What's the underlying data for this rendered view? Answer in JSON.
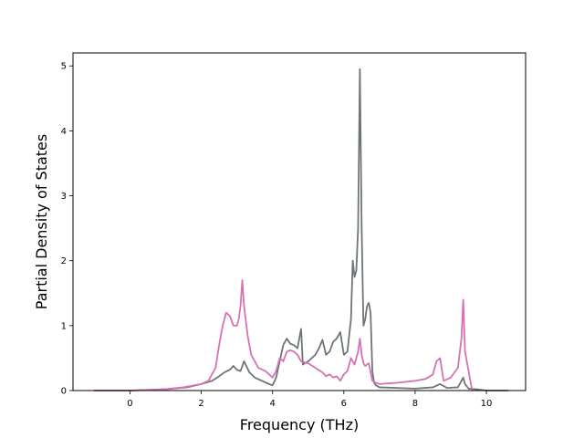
{
  "chart_data": {
    "type": "line",
    "xlabel": "Frequency (THz)",
    "ylabel": "Partial Density of States",
    "xlim": [
      -1.6,
      11.1
    ],
    "ylim": [
      0,
      5.2
    ],
    "xticks": [
      "0",
      "2",
      "4",
      "6",
      "8",
      "10"
    ],
    "yticks": [
      "0",
      "1",
      "2",
      "3",
      "4",
      "5"
    ],
    "grid": false,
    "legend": "none",
    "series": [
      {
        "color": "#6e7578",
        "x": [
          -1.0,
          0.0,
          1.0,
          1.6,
          2.0,
          2.3,
          2.5,
          2.65,
          2.8,
          2.9,
          3.0,
          3.1,
          3.2,
          3.35,
          3.5,
          3.7,
          3.9,
          4.0,
          4.1,
          4.2,
          4.3,
          4.4,
          4.5,
          4.6,
          4.7,
          4.8,
          4.85,
          4.9,
          5.0,
          5.1,
          5.2,
          5.3,
          5.4,
          5.5,
          5.6,
          5.7,
          5.8,
          5.9,
          6.0,
          6.1,
          6.2,
          6.25,
          6.3,
          6.35,
          6.4,
          6.45,
          6.5,
          6.55,
          6.6,
          6.65,
          6.7,
          6.75,
          6.8,
          6.85,
          6.9,
          7.0,
          7.5,
          8.0,
          8.5,
          8.7,
          8.9,
          9.2,
          9.35,
          9.4,
          9.5,
          9.7,
          10.0,
          10.6
        ],
        "y": [
          0.0,
          0.0,
          0.02,
          0.05,
          0.1,
          0.15,
          0.22,
          0.28,
          0.32,
          0.38,
          0.32,
          0.3,
          0.45,
          0.28,
          0.2,
          0.15,
          0.1,
          0.08,
          0.2,
          0.45,
          0.7,
          0.8,
          0.72,
          0.7,
          0.65,
          0.95,
          0.4,
          0.42,
          0.45,
          0.5,
          0.55,
          0.65,
          0.78,
          0.55,
          0.6,
          0.75,
          0.8,
          0.9,
          0.55,
          0.6,
          1.1,
          2.0,
          1.75,
          1.85,
          2.5,
          4.95,
          2.5,
          1.0,
          1.1,
          1.3,
          1.35,
          1.2,
          0.3,
          0.12,
          0.08,
          0.05,
          0.04,
          0.03,
          0.05,
          0.1,
          0.04,
          0.05,
          0.2,
          0.1,
          0.03,
          0.02,
          0.0,
          0.0
        ]
      },
      {
        "color": "#d672b4",
        "x": [
          -1.0,
          0.0,
          1.0,
          1.5,
          2.0,
          2.2,
          2.4,
          2.5,
          2.6,
          2.7,
          2.8,
          2.9,
          3.0,
          3.05,
          3.1,
          3.15,
          3.2,
          3.3,
          3.4,
          3.5,
          3.6,
          3.8,
          4.0,
          4.1,
          4.2,
          4.3,
          4.4,
          4.5,
          4.6,
          4.7,
          4.8,
          5.0,
          5.2,
          5.4,
          5.5,
          5.6,
          5.7,
          5.8,
          5.9,
          6.0,
          6.1,
          6.2,
          6.3,
          6.4,
          6.45,
          6.5,
          6.55,
          6.6,
          6.7,
          6.8,
          6.9,
          7.0,
          7.5,
          8.0,
          8.3,
          8.5,
          8.6,
          8.7,
          8.8,
          9.0,
          9.2,
          9.3,
          9.35,
          9.4,
          9.5,
          9.6
        ],
        "y": [
          0.0,
          0.0,
          0.02,
          0.05,
          0.1,
          0.15,
          0.35,
          0.7,
          1.0,
          1.2,
          1.15,
          1.0,
          1.0,
          1.1,
          1.3,
          1.7,
          1.3,
          0.85,
          0.55,
          0.45,
          0.35,
          0.3,
          0.2,
          0.3,
          0.5,
          0.45,
          0.6,
          0.62,
          0.6,
          0.55,
          0.45,
          0.42,
          0.35,
          0.28,
          0.22,
          0.25,
          0.2,
          0.22,
          0.15,
          0.25,
          0.3,
          0.5,
          0.4,
          0.6,
          0.8,
          0.55,
          0.42,
          0.38,
          0.42,
          0.15,
          0.12,
          0.1,
          0.12,
          0.15,
          0.18,
          0.25,
          0.45,
          0.5,
          0.15,
          0.2,
          0.35,
          0.8,
          1.4,
          0.6,
          0.3,
          0.0
        ]
      }
    ]
  }
}
